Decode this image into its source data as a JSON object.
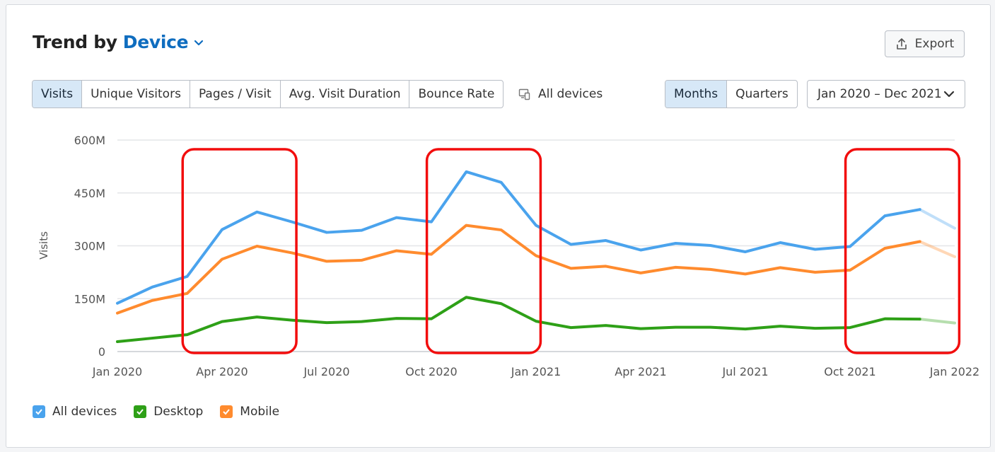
{
  "header": {
    "title_prefix": "Trend by",
    "title_dimension": "Device",
    "export_label": "Export"
  },
  "metric_tabs": [
    {
      "label": "Visits",
      "active": true
    },
    {
      "label": "Unique Visitors",
      "active": false
    },
    {
      "label": "Pages / Visit",
      "active": false
    },
    {
      "label": "Avg. Visit Duration",
      "active": false
    },
    {
      "label": "Bounce Rate",
      "active": false
    }
  ],
  "device_filter": {
    "label": "All devices",
    "icon": "devices-icon"
  },
  "granularity_tabs": [
    {
      "label": "Months",
      "active": true
    },
    {
      "label": "Quarters",
      "active": false
    }
  ],
  "date_range": {
    "label": "Jan 2020 – Dec 2021",
    "icon": "chevron-down-icon"
  },
  "legend": [
    {
      "label": "All devices",
      "color": "#4aa3ed",
      "checked": true
    },
    {
      "label": "Desktop",
      "color": "#2ea017",
      "checked": true
    },
    {
      "label": "Mobile",
      "color": "#ff8b2e",
      "checked": true
    }
  ],
  "colors": {
    "accent": "#0f6dbf",
    "all_devices": "#4aa3ed",
    "desktop": "#2ea017",
    "mobile": "#ff8b2e",
    "highlight": "#f20d0d",
    "grid": "#e3e5e8"
  },
  "chart_data": {
    "type": "line",
    "ylabel": "Visits",
    "ylim": [
      0,
      600
    ],
    "yticks": [
      0,
      150,
      300,
      450,
      600
    ],
    "ytick_labels": [
      "0",
      "150M",
      "300M",
      "450M",
      "600M"
    ],
    "xticks": [
      {
        "month": 0,
        "label": "Jan 2020"
      },
      {
        "month": 3,
        "label": "Apr 2020"
      },
      {
        "month": 6,
        "label": "Jul 2020"
      },
      {
        "month": 9,
        "label": "Oct 2020"
      },
      {
        "month": 12,
        "label": "Jan 2021"
      },
      {
        "month": 15,
        "label": "Apr 2021"
      },
      {
        "month": 18,
        "label": "Jul 2021"
      },
      {
        "month": 21,
        "label": "Oct 2021"
      },
      {
        "month": 24,
        "label": "Jan 2022"
      }
    ],
    "x": [
      "Jan 2020",
      "Feb 2020",
      "Mar 2020",
      "Apr 2020",
      "May 2020",
      "Jun 2020",
      "Jul 2020",
      "Aug 2020",
      "Sep 2020",
      "Oct 2020",
      "Nov 2020",
      "Dec 2020",
      "Jan 2021",
      "Feb 2021",
      "Mar 2021",
      "Apr 2021",
      "May 2021",
      "Jun 2021",
      "Jul 2021",
      "Aug 2021",
      "Sep 2021",
      "Oct 2021",
      "Nov 2021",
      "Dec 2021",
      "Jan 2022"
    ],
    "incomplete_from_index": 23,
    "series": [
      {
        "name": "All devices",
        "values": [
          137,
          183,
          213,
          346,
          396,
          368,
          338,
          344,
          380,
          368,
          510,
          480,
          358,
          304,
          315,
          288,
          307,
          301,
          283,
          309,
          290,
          298,
          385,
          403,
          350
        ]
      },
      {
        "name": "Mobile",
        "values": [
          109,
          145,
          165,
          262,
          299,
          280,
          256,
          259,
          286,
          276,
          358,
          345,
          272,
          236,
          242,
          223,
          239,
          233,
          220,
          238,
          225,
          231,
          293,
          312,
          269
        ]
      },
      {
        "name": "Desktop",
        "values": [
          28,
          38,
          48,
          85,
          98,
          89,
          82,
          85,
          94,
          93,
          154,
          136,
          86,
          68,
          74,
          65,
          69,
          69,
          64,
          72,
          66,
          68,
          93,
          92,
          81
        ]
      }
    ],
    "highlight_ranges": [
      [
        2,
        5
      ],
      [
        9,
        12
      ],
      [
        21,
        24
      ]
    ],
    "grid": true,
    "legend_position": "bottom-left"
  }
}
